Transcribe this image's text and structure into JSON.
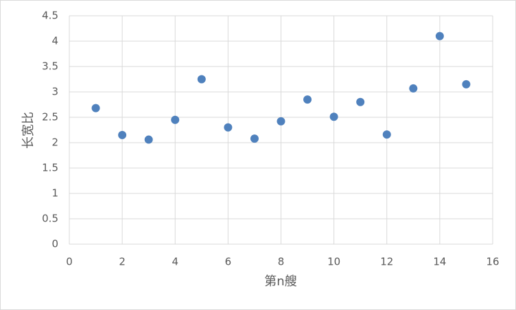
{
  "chart_data": {
    "type": "scatter",
    "x_label": "第n艘",
    "y_label": "长宽比",
    "x": [
      1,
      2,
      3,
      4,
      5,
      6,
      7,
      8,
      9,
      10,
      11,
      12,
      13,
      14,
      15
    ],
    "series": [
      {
        "color": "#4f81bd",
        "values": [
          2.68,
          2.15,
          2.06,
          2.45,
          3.25,
          2.3,
          2.08,
          2.42,
          2.85,
          2.51,
          2.8,
          2.16,
          3.07,
          4.1,
          3.15
        ]
      }
    ],
    "xlim": [
      0,
      16
    ],
    "xticks": [
      0,
      2,
      4,
      6,
      8,
      10,
      12,
      14,
      16
    ],
    "ylim": [
      0,
      4.5
    ],
    "yticks": [
      0,
      0.5,
      1,
      1.5,
      2,
      2.5,
      3,
      3.5,
      4,
      4.5
    ],
    "grid": true
  }
}
